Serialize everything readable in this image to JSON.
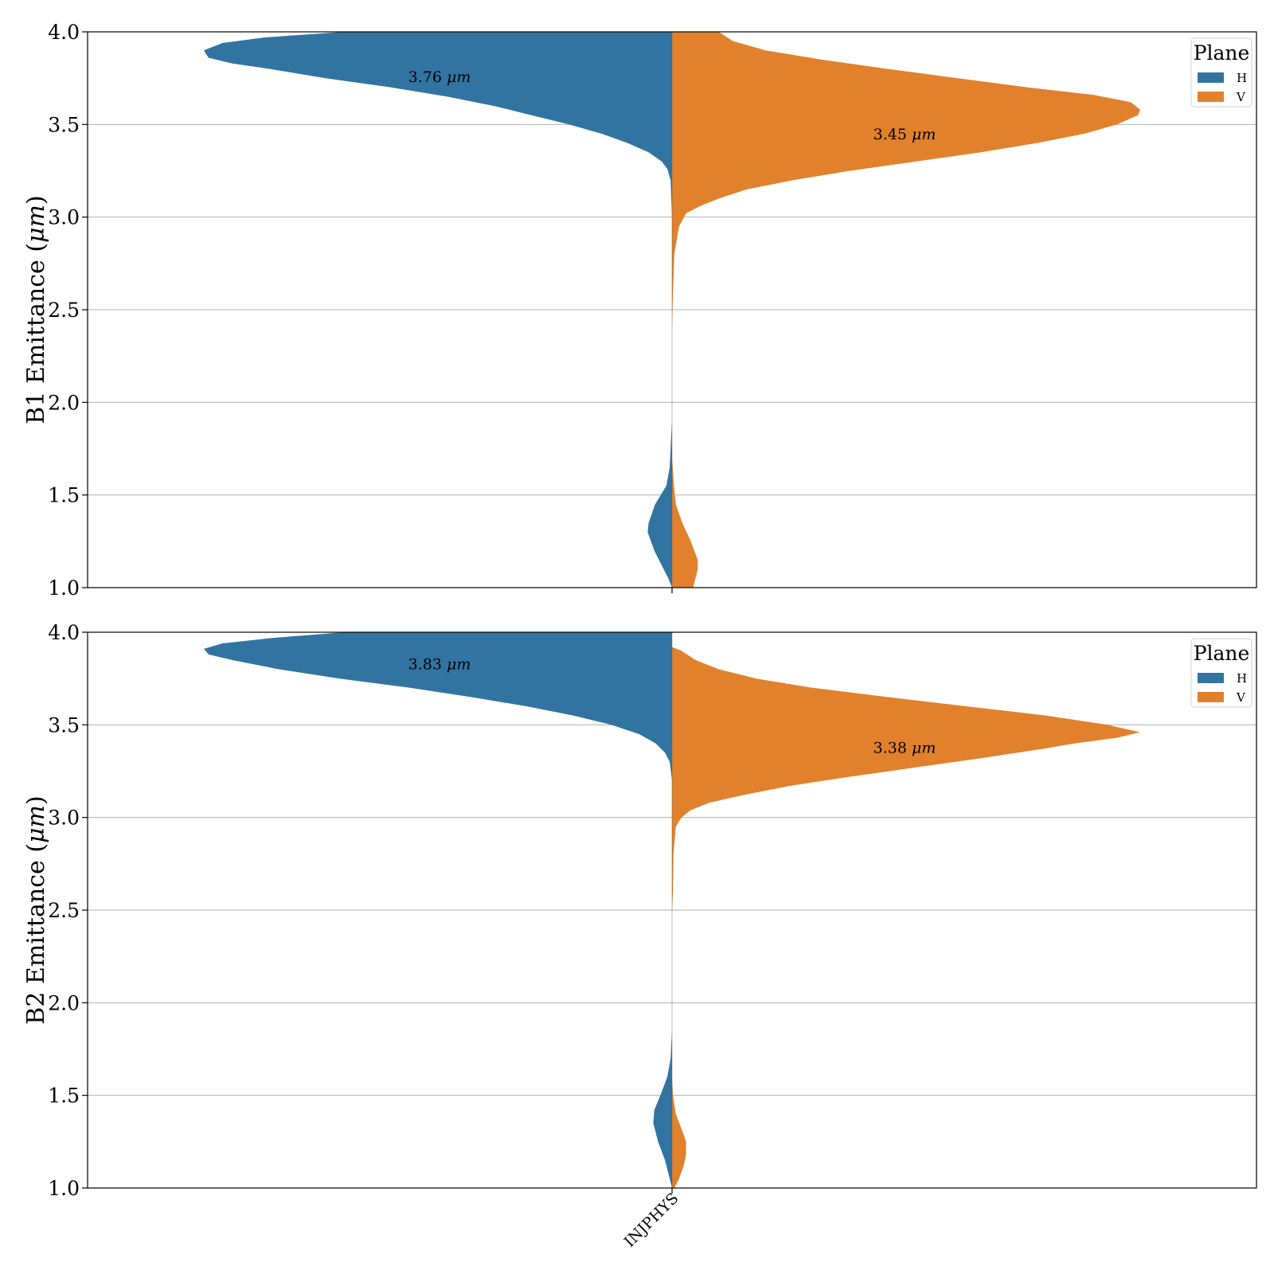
{
  "chart_data": [
    {
      "type": "violin",
      "split": true,
      "ylabel_prefix": "B1 Emittance (",
      "ylabel_unit": "μm",
      "ylabel_suffix": ")",
      "ylim": [
        1.0,
        4.0
      ],
      "yticks": [
        "1.0",
        "1.5",
        "2.0",
        "2.5",
        "3.0",
        "3.5",
        "4.0"
      ],
      "category": "INJPHYS",
      "grid": "y",
      "legend": {
        "title": "Plane",
        "placement": "top-right",
        "entries": [
          "H",
          "V"
        ]
      },
      "series": [
        {
          "name": "H",
          "color": "#3274a1",
          "annotation_value": "3.76",
          "annotation_y": 3.76,
          "density": [
            [
              1.0,
              0.0
            ],
            [
              1.05,
              0.08
            ],
            [
              1.1,
              0.18
            ],
            [
              1.2,
              0.38
            ],
            [
              1.3,
              0.52
            ],
            [
              1.35,
              0.5
            ],
            [
              1.45,
              0.36
            ],
            [
              1.55,
              0.12
            ],
            [
              1.65,
              0.05
            ],
            [
              1.8,
              0.02
            ],
            [
              1.9,
              0.0
            ],
            [
              3.0,
              0.0
            ],
            [
              3.2,
              0.03
            ],
            [
              3.26,
              0.1
            ],
            [
              3.3,
              0.22
            ],
            [
              3.35,
              0.5
            ],
            [
              3.4,
              0.95
            ],
            [
              3.45,
              1.5
            ],
            [
              3.5,
              2.2
            ],
            [
              3.55,
              3.0
            ],
            [
              3.6,
              3.8
            ],
            [
              3.65,
              4.8
            ],
            [
              3.7,
              6.0
            ],
            [
              3.75,
              7.4
            ],
            [
              3.8,
              8.6
            ],
            [
              3.83,
              9.4
            ],
            [
              3.86,
              9.9
            ],
            [
              3.9,
              10.0
            ],
            [
              3.94,
              9.6
            ],
            [
              3.97,
              8.7
            ],
            [
              4.0,
              7.0
            ]
          ]
        },
        {
          "name": "V",
          "color": "#e1812c",
          "annotation_value": "3.45",
          "annotation_y": 3.45,
          "density": [
            [
              1.0,
              0.45
            ],
            [
              1.05,
              0.5
            ],
            [
              1.1,
              0.55
            ],
            [
              1.15,
              0.55
            ],
            [
              1.25,
              0.4
            ],
            [
              1.35,
              0.22
            ],
            [
              1.45,
              0.08
            ],
            [
              1.55,
              0.04
            ],
            [
              1.7,
              0.0
            ],
            [
              2.4,
              0.0
            ],
            [
              2.6,
              0.02
            ],
            [
              2.8,
              0.05
            ],
            [
              2.95,
              0.15
            ],
            [
              3.02,
              0.3
            ],
            [
              3.06,
              0.6
            ],
            [
              3.1,
              1.0
            ],
            [
              3.15,
              1.6
            ],
            [
              3.2,
              2.6
            ],
            [
              3.25,
              3.8
            ],
            [
              3.3,
              5.2
            ],
            [
              3.35,
              6.6
            ],
            [
              3.4,
              7.8
            ],
            [
              3.45,
              8.8
            ],
            [
              3.5,
              9.5
            ],
            [
              3.55,
              9.95
            ],
            [
              3.58,
              10.0
            ],
            [
              3.62,
              9.8
            ],
            [
              3.66,
              9.0
            ],
            [
              3.7,
              7.6
            ],
            [
              3.75,
              6.1
            ],
            [
              3.8,
              4.6
            ],
            [
              3.85,
              3.2
            ],
            [
              3.9,
              2.0
            ],
            [
              3.95,
              1.3
            ],
            [
              4.0,
              1.0
            ]
          ]
        }
      ]
    },
    {
      "type": "violin",
      "split": true,
      "ylabel_prefix": "B2 Emittance (",
      "ylabel_unit": "μm",
      "ylabel_suffix": ")",
      "ylim": [
        1.0,
        4.0
      ],
      "yticks": [
        "1.0",
        "1.5",
        "2.0",
        "2.5",
        "3.0",
        "3.5",
        "4.0"
      ],
      "category": "INJPHYS",
      "grid": "y",
      "legend": {
        "title": "Plane",
        "placement": "top-right",
        "entries": [
          "H",
          "V"
        ]
      },
      "series": [
        {
          "name": "H",
          "color": "#3274a1",
          "annotation_value": "3.83",
          "annotation_y": 3.83,
          "density": [
            [
              1.0,
              0.0
            ],
            [
              1.05,
              0.05
            ],
            [
              1.15,
              0.15
            ],
            [
              1.25,
              0.3
            ],
            [
              1.35,
              0.4
            ],
            [
              1.42,
              0.38
            ],
            [
              1.5,
              0.25
            ],
            [
              1.6,
              0.1
            ],
            [
              1.7,
              0.03
            ],
            [
              1.85,
              0.0
            ],
            [
              3.2,
              0.0
            ],
            [
              3.3,
              0.05
            ],
            [
              3.35,
              0.15
            ],
            [
              3.4,
              0.35
            ],
            [
              3.45,
              0.7
            ],
            [
              3.5,
              1.3
            ],
            [
              3.55,
              2.1
            ],
            [
              3.6,
              3.1
            ],
            [
              3.65,
              4.3
            ],
            [
              3.7,
              5.6
            ],
            [
              3.75,
              7.1
            ],
            [
              3.8,
              8.4
            ],
            [
              3.85,
              9.4
            ],
            [
              3.88,
              9.9
            ],
            [
              3.91,
              10.0
            ],
            [
              3.94,
              9.6
            ],
            [
              3.97,
              8.5
            ],
            [
              4.0,
              7.0
            ]
          ]
        },
        {
          "name": "V",
          "color": "#e1812c",
          "annotation_value": "3.38",
          "annotation_y": 3.38,
          "density": [
            [
              1.0,
              0.05
            ],
            [
              1.05,
              0.15
            ],
            [
              1.12,
              0.25
            ],
            [
              1.18,
              0.3
            ],
            [
              1.25,
              0.3
            ],
            [
              1.32,
              0.2
            ],
            [
              1.4,
              0.08
            ],
            [
              1.5,
              0.02
            ],
            [
              1.6,
              0.0
            ],
            [
              2.5,
              0.0
            ],
            [
              2.6,
              0.02
            ],
            [
              2.8,
              0.03
            ],
            [
              2.95,
              0.08
            ],
            [
              3.0,
              0.2
            ],
            [
              3.04,
              0.4
            ],
            [
              3.08,
              0.8
            ],
            [
              3.12,
              1.5
            ],
            [
              3.17,
              2.5
            ],
            [
              3.22,
              3.8
            ],
            [
              3.27,
              5.2
            ],
            [
              3.32,
              6.6
            ],
            [
              3.37,
              7.9
            ],
            [
              3.4,
              8.6
            ],
            [
              3.43,
              9.5
            ],
            [
              3.46,
              10.0
            ],
            [
              3.5,
              9.3
            ],
            [
              3.55,
              8.0
            ],
            [
              3.6,
              6.3
            ],
            [
              3.65,
              4.6
            ],
            [
              3.7,
              3.0
            ],
            [
              3.75,
              1.8
            ],
            [
              3.8,
              1.0
            ],
            [
              3.85,
              0.5
            ],
            [
              3.9,
              0.2
            ],
            [
              3.92,
              0.0
            ]
          ]
        }
      ]
    }
  ]
}
